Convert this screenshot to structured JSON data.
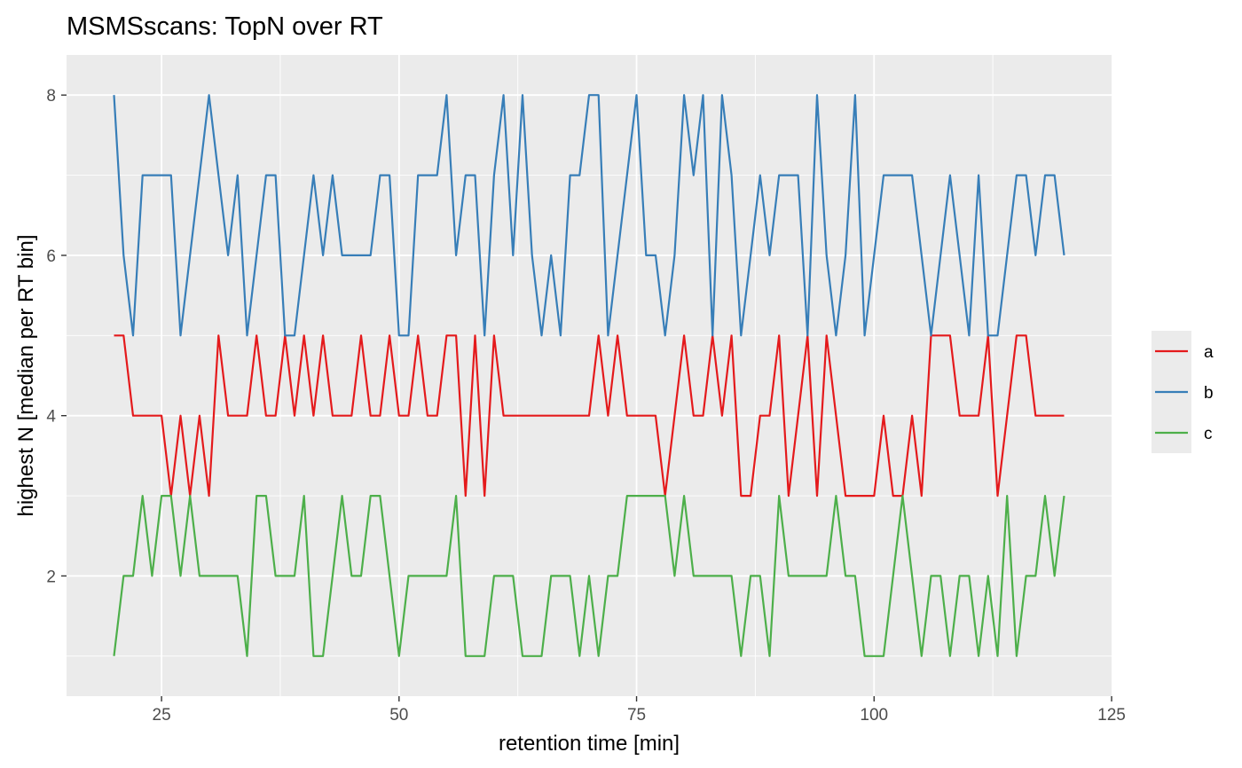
{
  "chart_data": {
    "type": "line",
    "title": "MSMSscans: TopN over RT",
    "xlabel": "retention time [min]",
    "ylabel": "highest N [median per RT bin]",
    "xlim": [
      15,
      125
    ],
    "ylim": [
      0.5,
      8.5
    ],
    "xticks": [
      25,
      50,
      75,
      100,
      125
    ],
    "yticks": [
      2,
      4,
      6,
      8
    ],
    "grid": true,
    "legend_position": "right",
    "panel_background": "#ebebeb",
    "grid_color": "#ffffff",
    "series": [
      {
        "name": "a",
        "color": "#e41a1c",
        "x": [
          20,
          21,
          22,
          23,
          24,
          25,
          26,
          27,
          28,
          29,
          30,
          31,
          32,
          33,
          34,
          35,
          36,
          37,
          38,
          39,
          40,
          41,
          42,
          43,
          44,
          45,
          46,
          47,
          48,
          49,
          50,
          51,
          52,
          53,
          54,
          55,
          56,
          57,
          58,
          59,
          60,
          61,
          62,
          63,
          64,
          65,
          66,
          67,
          68,
          69,
          70,
          71,
          72,
          73,
          74,
          75,
          76,
          77,
          78,
          79,
          80,
          81,
          82,
          83,
          84,
          85,
          86,
          87,
          88,
          89,
          90,
          91,
          92,
          93,
          94,
          95,
          96,
          97,
          98,
          99,
          100,
          101,
          102,
          103,
          104,
          105,
          106,
          107,
          108,
          109,
          110,
          111,
          112,
          113,
          114,
          115,
          116,
          117,
          118,
          119,
          120
        ],
        "y": [
          5,
          5,
          4,
          4,
          4,
          4,
          3,
          4,
          3,
          4,
          3,
          5,
          4,
          4,
          4,
          5,
          4,
          4,
          5,
          4,
          5,
          4,
          5,
          4,
          4,
          4,
          5,
          4,
          4,
          5,
          4,
          4,
          5,
          4,
          4,
          5,
          5,
          3,
          5,
          3,
          5,
          4,
          4,
          4,
          4,
          4,
          4,
          4,
          4,
          4,
          4,
          5,
          4,
          5,
          4,
          4,
          4,
          4,
          3,
          4,
          5,
          4,
          4,
          5,
          4,
          5,
          3,
          3,
          4,
          4,
          5,
          3,
          4,
          5,
          3,
          5,
          4,
          3,
          3,
          3,
          3,
          4,
          3,
          3,
          4,
          3,
          5,
          5,
          5,
          4,
          4,
          4,
          5,
          3,
          4,
          5,
          5,
          4,
          4,
          4,
          4
        ]
      },
      {
        "name": "b",
        "color": "#377eb8",
        "x": [
          20,
          21,
          22,
          23,
          24,
          25,
          26,
          27,
          28,
          29,
          30,
          31,
          32,
          33,
          34,
          35,
          36,
          37,
          38,
          39,
          40,
          41,
          42,
          43,
          44,
          45,
          46,
          47,
          48,
          49,
          50,
          51,
          52,
          53,
          54,
          55,
          56,
          57,
          58,
          59,
          60,
          61,
          62,
          63,
          64,
          65,
          66,
          67,
          68,
          69,
          70,
          71,
          72,
          73,
          74,
          75,
          76,
          77,
          78,
          79,
          80,
          81,
          82,
          83,
          84,
          85,
          86,
          87,
          88,
          89,
          90,
          91,
          92,
          93,
          94,
          95,
          96,
          97,
          98,
          99,
          100,
          101,
          102,
          103,
          104,
          105,
          106,
          107,
          108,
          109,
          110,
          111,
          112,
          113,
          114,
          115,
          116,
          117,
          118,
          119,
          120
        ],
        "y": [
          8,
          6,
          5,
          7,
          7,
          7,
          7,
          5,
          6,
          7,
          8,
          7,
          6,
          7,
          5,
          6,
          7,
          7,
          5,
          5,
          6,
          7,
          6,
          7,
          6,
          6,
          6,
          6,
          7,
          7,
          5,
          5,
          7,
          7,
          7,
          8,
          6,
          7,
          7,
          5,
          7,
          8,
          6,
          8,
          6,
          5,
          6,
          5,
          7,
          7,
          8,
          8,
          5,
          6,
          7,
          8,
          6,
          6,
          5,
          6,
          8,
          7,
          8,
          5,
          8,
          7,
          5,
          6,
          7,
          6,
          7,
          7,
          7,
          5,
          8,
          6,
          5,
          6,
          8,
          5,
          6,
          7,
          7,
          7,
          7,
          6,
          5,
          6,
          7,
          6,
          5,
          7,
          5,
          5,
          6,
          7,
          7,
          6,
          7,
          7,
          6
        ]
      },
      {
        "name": "c",
        "color": "#4daf4a",
        "x": [
          20,
          21,
          22,
          23,
          24,
          25,
          26,
          27,
          28,
          29,
          30,
          31,
          32,
          33,
          34,
          35,
          36,
          37,
          38,
          39,
          40,
          41,
          42,
          43,
          44,
          45,
          46,
          47,
          48,
          49,
          50,
          51,
          52,
          53,
          54,
          55,
          56,
          57,
          58,
          59,
          60,
          61,
          62,
          63,
          64,
          65,
          66,
          67,
          68,
          69,
          70,
          71,
          72,
          73,
          74,
          75,
          76,
          77,
          78,
          79,
          80,
          81,
          82,
          83,
          84,
          85,
          86,
          87,
          88,
          89,
          90,
          91,
          92,
          93,
          94,
          95,
          96,
          97,
          98,
          99,
          100,
          101,
          102,
          103,
          104,
          105,
          106,
          107,
          108,
          109,
          110,
          111,
          112,
          113,
          114,
          115,
          116,
          117,
          118,
          119,
          120
        ],
        "y": [
          1,
          2,
          2,
          3,
          2,
          3,
          3,
          2,
          3,
          2,
          2,
          2,
          2,
          2,
          1,
          3,
          3,
          2,
          2,
          2,
          3,
          1,
          1,
          2,
          3,
          2,
          2,
          3,
          3,
          2,
          1,
          2,
          2,
          2,
          2,
          2,
          3,
          1,
          1,
          1,
          2,
          2,
          2,
          1,
          1,
          1,
          2,
          2,
          2,
          1,
          2,
          1,
          2,
          2,
          3,
          3,
          3,
          3,
          3,
          2,
          3,
          2,
          2,
          2,
          2,
          2,
          1,
          2,
          2,
          1,
          3,
          2,
          2,
          2,
          2,
          2,
          3,
          2,
          2,
          1,
          1,
          1,
          2,
          3,
          2,
          1,
          2,
          2,
          1,
          2,
          2,
          1,
          2,
          1,
          3,
          1,
          2,
          2,
          3,
          2,
          3
        ]
      }
    ]
  }
}
